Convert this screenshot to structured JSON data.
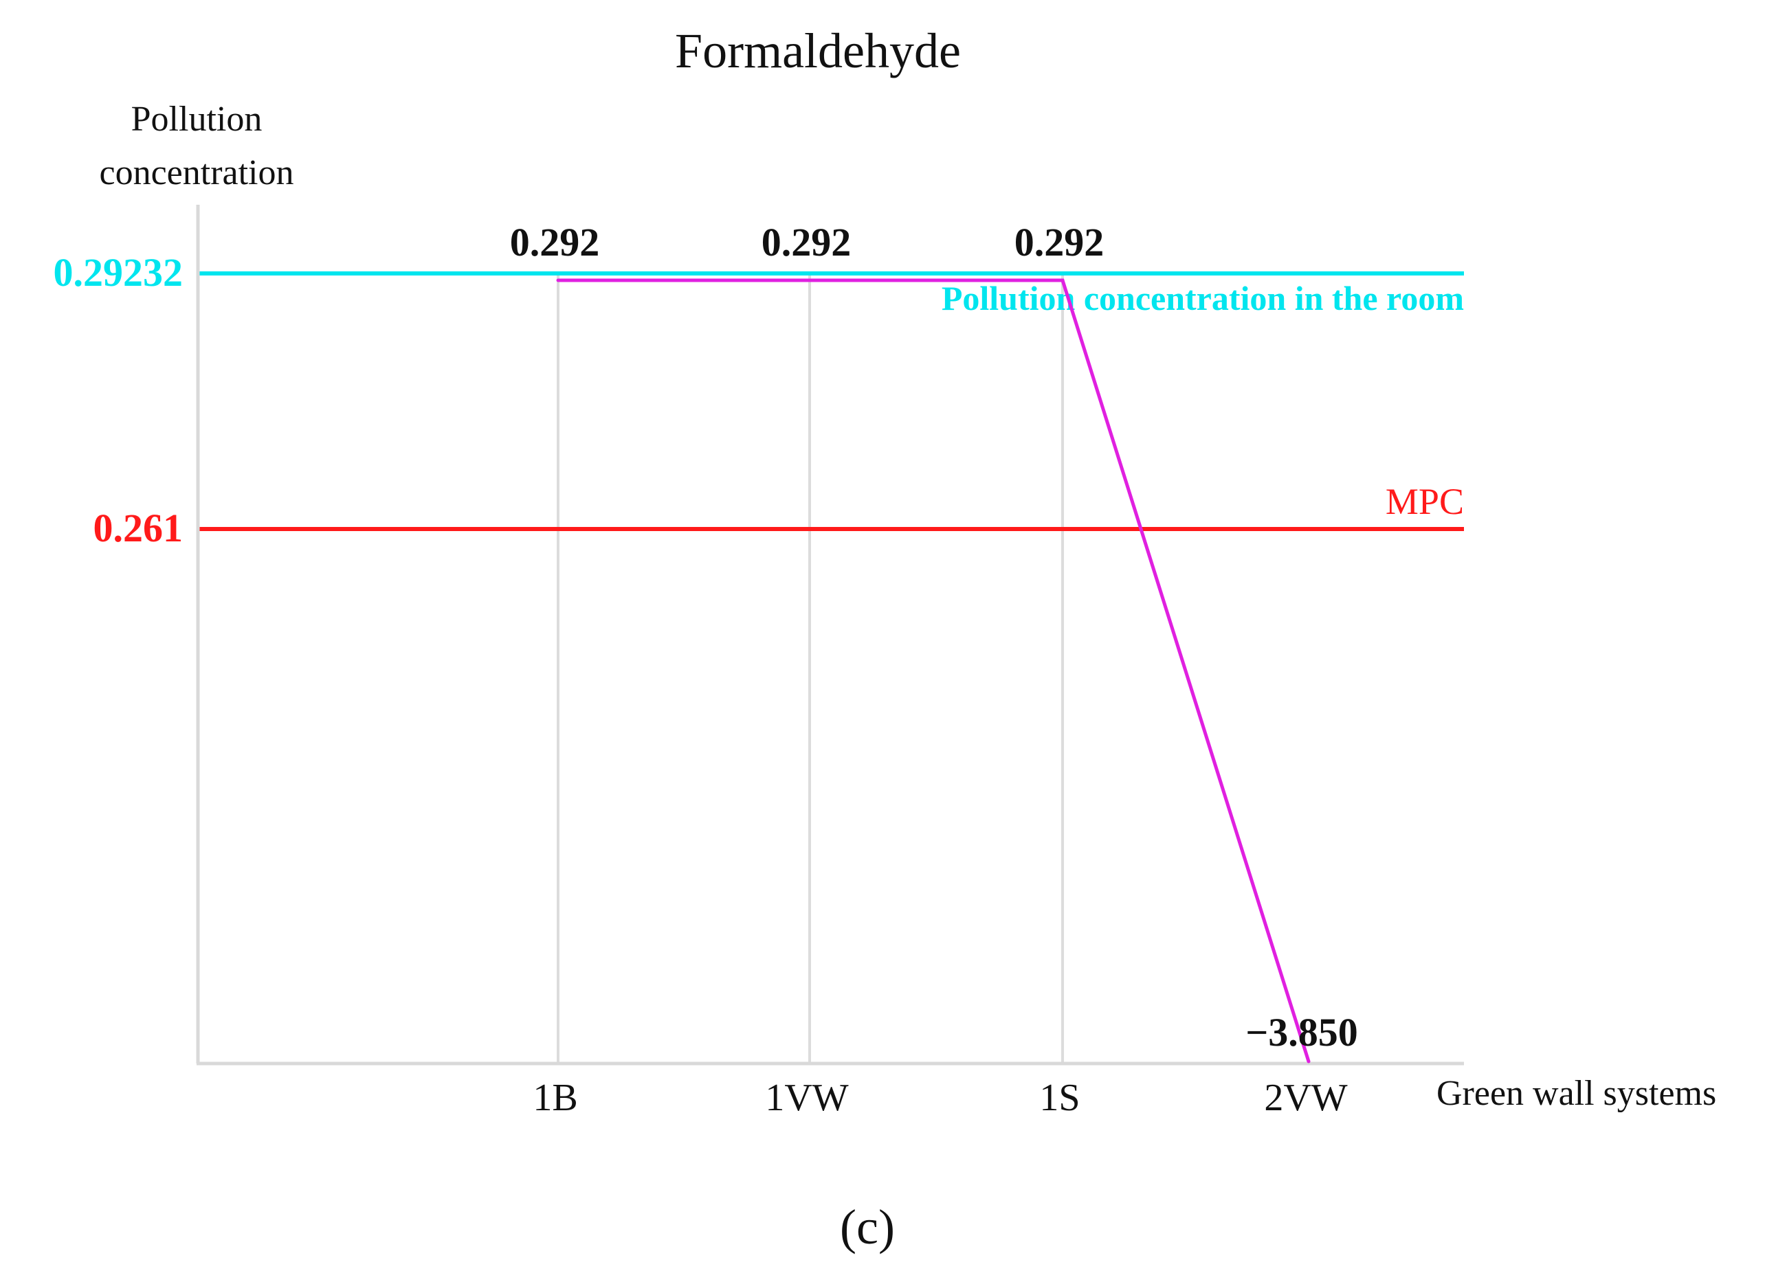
{
  "chart_data": {
    "type": "line",
    "title": "Formaldehyde",
    "ylabel_line1": "Pollution",
    "ylabel_line2": "concentration",
    "xlabel": "Green wall systems",
    "panel_label": "(c)",
    "categories": [
      "1B",
      "1VW",
      "1S",
      "2VW"
    ],
    "series": [
      {
        "values": [
          0.292,
          0.292,
          0.292,
          -3.85
        ],
        "value_labels": [
          "0.292",
          "0.292",
          "0.292",
          "−3.850"
        ],
        "color": "#e020e0"
      }
    ],
    "reference_lines": [
      {
        "value": 0.29232,
        "value_label": "0.29232",
        "label": "Pollution concentration in the room",
        "color": "#00e5ee"
      },
      {
        "value": 0.261,
        "value_label": "0.261",
        "label": "MPC",
        "color": "#ff1a1a"
      }
    ],
    "ylim": [
      -3.85,
      0.29232
    ],
    "grid": "vertical lines at categories",
    "axis_color": "#d9d9d9",
    "grid_color": "#dcdcdc"
  }
}
